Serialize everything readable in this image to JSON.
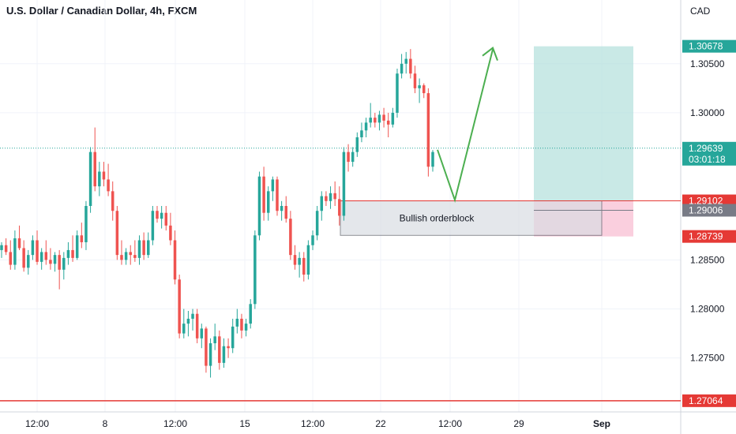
{
  "header": {
    "title": "U.S. Dollar / Canadian Dollar, 4h, FXCM"
  },
  "currency": "CAD",
  "colors": {
    "up": "#26a69a",
    "down": "#ef5350",
    "target": "#b2dfdb",
    "stop": "#f8bbd0",
    "arrow": "#4caf50",
    "level": "#e53935",
    "tag_current": "#26a69a",
    "tag_gray": "#787b86"
  },
  "chart_data": {
    "type": "candlestick",
    "title": "U.S. Dollar / Canadian Dollar, 4h, FXCM",
    "ylim": [
      1.2695,
      1.3115
    ],
    "y_ticks": [
      "1.30500",
      "1.30000",
      "1.28500",
      "1.28000",
      "1.27500"
    ],
    "x_ticks": [
      "12:00",
      "8",
      "12:00",
      "15",
      "12:00",
      "22",
      "12:00",
      "29",
      "Sep"
    ],
    "grid": true,
    "candles": [
      [
        1.286,
        1.2868,
        1.2852,
        1.2865
      ],
      [
        1.2865,
        1.2872,
        1.2855,
        1.2858
      ],
      [
        1.2858,
        1.287,
        1.284,
        1.2845
      ],
      [
        1.2845,
        1.288,
        1.284,
        1.2872
      ],
      [
        1.2872,
        1.2885,
        1.286,
        1.2862
      ],
      [
        1.2862,
        1.287,
        1.2838,
        1.2842
      ],
      [
        1.2842,
        1.286,
        1.2835,
        1.2855
      ],
      [
        1.2855,
        1.2875,
        1.285,
        1.287
      ],
      [
        1.287,
        1.288,
        1.2845,
        1.2848
      ],
      [
        1.2848,
        1.2862,
        1.284,
        1.2858
      ],
      [
        1.2858,
        1.287,
        1.2845,
        1.285
      ],
      [
        1.285,
        1.2862,
        1.284,
        1.2846
      ],
      [
        1.2846,
        1.2858,
        1.2838,
        1.2855
      ],
      [
        1.2855,
        1.286,
        1.282,
        1.284
      ],
      [
        1.284,
        1.2858,
        1.283,
        1.2852
      ],
      [
        1.2852,
        1.2868,
        1.2845,
        1.286
      ],
      [
        1.286,
        1.2875,
        1.2848,
        1.2852
      ],
      [
        1.2852,
        1.288,
        1.285,
        1.2875
      ],
      [
        1.2875,
        1.2888,
        1.2862,
        1.2868
      ],
      [
        1.2868,
        1.291,
        1.286,
        1.2905
      ],
      [
        1.2905,
        1.2965,
        1.2898,
        1.296
      ],
      [
        1.296,
        1.2985,
        1.292,
        1.2925
      ],
      [
        1.2925,
        1.295,
        1.2915,
        1.294
      ],
      [
        1.294,
        1.295,
        1.2925,
        1.2932
      ],
      [
        1.2932,
        1.2948,
        1.2915,
        1.292
      ],
      [
        1.292,
        1.293,
        1.289,
        1.29
      ],
      [
        1.29,
        1.2905,
        1.285,
        1.2855
      ],
      [
        1.2855,
        1.287,
        1.2845,
        1.285
      ],
      [
        1.285,
        1.2862,
        1.2845,
        1.2858
      ],
      [
        1.2858,
        1.2865,
        1.2845,
        1.2855
      ],
      [
        1.2855,
        1.287,
        1.2848,
        1.2852
      ],
      [
        1.2852,
        1.2875,
        1.2845,
        1.287
      ],
      [
        1.287,
        1.2878,
        1.285,
        1.2855
      ],
      [
        1.2855,
        1.2878,
        1.2852,
        1.287
      ],
      [
        1.287,
        1.2905,
        1.2865,
        1.29
      ],
      [
        1.29,
        1.2905,
        1.2888,
        1.2892
      ],
      [
        1.2892,
        1.2905,
        1.2882,
        1.2898
      ],
      [
        1.2898,
        1.2905,
        1.288,
        1.2885
      ],
      [
        1.2885,
        1.2898,
        1.2865,
        1.287
      ],
      [
        1.287,
        1.288,
        1.2825,
        1.283
      ],
      [
        1.283,
        1.2835,
        1.277,
        1.2775
      ],
      [
        1.2775,
        1.28,
        1.277,
        1.2785
      ],
      [
        1.2785,
        1.2798,
        1.2772,
        1.279
      ],
      [
        1.279,
        1.28,
        1.2778,
        1.2795
      ],
      [
        1.2795,
        1.28,
        1.2765,
        1.277
      ],
      [
        1.277,
        1.2785,
        1.276,
        1.278
      ],
      [
        1.278,
        1.2782,
        1.2735,
        1.2742
      ],
      [
        1.2742,
        1.277,
        1.273,
        1.2765
      ],
      [
        1.2765,
        1.2785,
        1.2758,
        1.2772
      ],
      [
        1.2772,
        1.2778,
        1.2738,
        1.2745
      ],
      [
        1.2745,
        1.277,
        1.274,
        1.2762
      ],
      [
        1.2762,
        1.277,
        1.275,
        1.276
      ],
      [
        1.276,
        1.279,
        1.2755,
        1.2782
      ],
      [
        1.2782,
        1.28,
        1.2775,
        1.279
      ],
      [
        1.279,
        1.2795,
        1.277,
        1.2778
      ],
      [
        1.2778,
        1.279,
        1.2772,
        1.2785
      ],
      [
        1.2785,
        1.281,
        1.278,
        1.2805
      ],
      [
        1.2805,
        1.288,
        1.28,
        1.2875
      ],
      [
        1.2875,
        1.294,
        1.287,
        1.2935
      ],
      [
        1.2935,
        1.2945,
        1.289,
        1.2898
      ],
      [
        1.2898,
        1.2925,
        1.289,
        1.292
      ],
      [
        1.292,
        1.2935,
        1.291,
        1.2932
      ],
      [
        1.2932,
        1.2935,
        1.2895,
        1.29
      ],
      [
        1.29,
        1.291,
        1.289,
        1.2905
      ],
      [
        1.2905,
        1.2915,
        1.2888,
        1.2892
      ],
      [
        1.2892,
        1.29,
        1.285,
        1.2855
      ],
      [
        1.2855,
        1.2865,
        1.284,
        1.2845
      ],
      [
        1.2845,
        1.2858,
        1.2832,
        1.2852
      ],
      [
        1.2852,
        1.2858,
        1.2828,
        1.2835
      ],
      [
        1.2835,
        1.287,
        1.283,
        1.2865
      ],
      [
        1.2865,
        1.288,
        1.286,
        1.2875
      ],
      [
        1.2875,
        1.2905,
        1.287,
        1.29
      ],
      [
        1.29,
        1.292,
        1.289,
        1.2915
      ],
      [
        1.2915,
        1.292,
        1.2905,
        1.291
      ],
      [
        1.291,
        1.2925,
        1.2902,
        1.2918
      ],
      [
        1.2918,
        1.293,
        1.2905,
        1.2912
      ],
      [
        1.2912,
        1.2925,
        1.2885,
        1.2895
      ],
      [
        1.2895,
        1.2965,
        1.289,
        1.296
      ],
      [
        1.296,
        1.2968,
        1.294,
        1.295
      ],
      [
        1.295,
        1.2965,
        1.2945,
        1.296
      ],
      [
        1.296,
        1.298,
        1.2955,
        1.2975
      ],
      [
        1.2975,
        1.299,
        1.297,
        1.2982
      ],
      [
        1.2982,
        1.2995,
        1.2975,
        1.299
      ],
      [
        1.299,
        1.301,
        1.2985,
        1.2995
      ],
      [
        1.2995,
        1.3,
        1.2985,
        1.299
      ],
      [
        1.299,
        1.3002,
        1.2982,
        1.2998
      ],
      [
        1.2998,
        1.3005,
        1.2985,
        1.2992
      ],
      [
        1.2992,
        1.3,
        1.2975,
        1.2988
      ],
      [
        1.2988,
        1.3005,
        1.2985,
        1.3
      ],
      [
        1.3,
        1.3045,
        1.2995,
        1.304
      ],
      [
        1.304,
        1.306,
        1.3035,
        1.305
      ],
      [
        1.305,
        1.3062,
        1.304,
        1.3055
      ],
      [
        1.3055,
        1.3065,
        1.3035,
        1.304
      ],
      [
        1.304,
        1.3048,
        1.302,
        1.3025
      ],
      [
        1.3025,
        1.3035,
        1.301,
        1.3028
      ],
      [
        1.3028,
        1.303,
        1.3015,
        1.302
      ],
      [
        1.302,
        1.3025,
        1.2935,
        1.2945
      ],
      [
        1.2945,
        1.2962,
        1.294,
        1.296
      ]
    ],
    "levels": {
      "target": 1.30678,
      "entry": 1.29102,
      "stop": 1.28739,
      "current": 1.29639,
      "orderblock_low": 1.2875,
      "support": 1.27064,
      "gray": 1.29006
    },
    "tags": {
      "target": "1.30678",
      "entry": "1.29102",
      "gray": "1.29006",
      "stop": "1.28739",
      "current": "1.29639",
      "countdown": "03:01:18",
      "support": "1.27064"
    },
    "annotation": "Bullish orderblock"
  }
}
